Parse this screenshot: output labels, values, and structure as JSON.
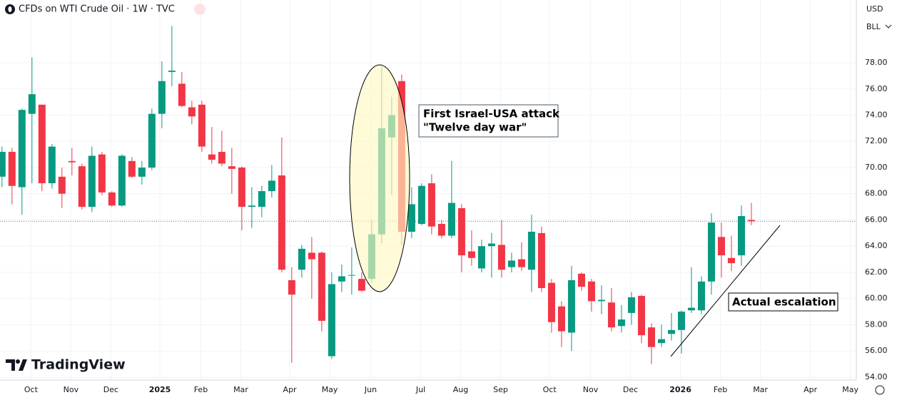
{
  "chart_data": {
    "type": "candlestick",
    "title": "CFDs on WTI Crude Oil · 1W · TVC",
    "currency": "USD",
    "unit": "BLL",
    "logo": "TradingView",
    "annotations": [
      "First Israel-USA attack",
      "\"Twelve day war\"",
      "Actual escalation"
    ],
    "up_color": "#089981",
    "down_color": "#f23645",
    "grid": true,
    "ylim": [
      53.78,
      82.79
    ],
    "yticks": [
      {
        "value": 54,
        "label": "54.00"
      },
      {
        "value": 56,
        "label": "56.00"
      },
      {
        "value": 58,
        "label": "58.00"
      },
      {
        "value": 60,
        "label": "60.00"
      },
      {
        "value": 62,
        "label": "62.00"
      },
      {
        "value": 64,
        "label": "64.00"
      },
      {
        "value": 66,
        "label": "66.00"
      },
      {
        "value": 68,
        "label": "68.00"
      },
      {
        "value": 70,
        "label": "70.00"
      },
      {
        "value": 72,
        "label": "72.00"
      },
      {
        "value": 74,
        "label": "74.00"
      },
      {
        "value": 76,
        "label": "76.00"
      },
      {
        "value": 78,
        "label": "78.00"
      }
    ],
    "xlim": [
      -0.2,
      85.5
    ],
    "xticks": [
      {
        "value": 2.9,
        "label": "Oct"
      },
      {
        "value": 6.9,
        "label": "Nov"
      },
      {
        "value": 10.9,
        "label": "Dec"
      },
      {
        "value": 15.8,
        "label": "2025"
      },
      {
        "value": 19.9,
        "label": "Feb"
      },
      {
        "value": 23.9,
        "label": "Mar"
      },
      {
        "value": 28.8,
        "label": "Apr"
      },
      {
        "value": 32.8,
        "label": "May"
      },
      {
        "value": 36.9,
        "label": "Jun"
      },
      {
        "value": 41.9,
        "label": "Jul"
      },
      {
        "value": 45.9,
        "label": "Aug"
      },
      {
        "value": 49.9,
        "label": "Sep"
      },
      {
        "value": 54.8,
        "label": "Oct"
      },
      {
        "value": 58.9,
        "label": "Nov"
      },
      {
        "value": 62.9,
        "label": "Dec"
      },
      {
        "value": 67.9,
        "label": "2026"
      },
      {
        "value": 71.9,
        "label": "Feb"
      },
      {
        "value": 75.9,
        "label": "Mar"
      },
      {
        "value": 80.9,
        "label": "Apr"
      },
      {
        "value": 84.9,
        "label": "May"
      }
    ],
    "open": [
      69.3,
      71.2,
      68.5,
      74.1,
      74.8,
      68.8,
      69.3,
      70.5,
      70.1,
      67.0,
      71.0,
      68.1,
      67.1,
      70.5,
      69.3,
      70.0,
      74.1,
      77.3,
      76.4,
      74.6,
      74.8,
      71.0,
      71.2,
      70.1,
      70.0,
      67.0,
      67.0,
      68.2,
      69.4,
      61.4,
      62.2,
      63.5,
      63.5,
      55.6,
      61.3,
      61.8,
      61.5,
      61.5,
      64.9,
      72.3,
      76.6,
      65.1,
      65.7,
      68.8,
      65.7,
      64.8,
      66.9,
      63.6,
      62.3,
      64.0,
      64.1,
      62.4,
      63.0,
      62.2,
      65.0,
      61.2,
      59.4,
      57.4,
      61.9,
      61.3,
      59.8,
      59.7,
      57.9,
      58.9,
      60.2,
      57.8,
      56.6,
      57.3,
      57.6,
      59.1,
      59.1,
      61.3,
      64.7,
      63.1,
      63.3,
      66.0
    ],
    "high": [
      71.6,
      71.5,
      74.5,
      78.4,
      74.8,
      71.8,
      70.0,
      71.5,
      70.3,
      71.6,
      71.2,
      68.2,
      71.0,
      70.8,
      70.5,
      74.5,
      78.1,
      80.8,
      77.3,
      75.1,
      75.1,
      73.1,
      72.8,
      71.5,
      70.1,
      68.5,
      68.6,
      70.2,
      72.3,
      62.4,
      64.1,
      64.7,
      63.6,
      62.0,
      62.6,
      63.9,
      62.0,
      66.0,
      77.7,
      75.4,
      77.1,
      68.5,
      68.8,
      69.5,
      66.0,
      70.5,
      67.2,
      65.2,
      64.5,
      65.0,
      66.0,
      63.5,
      64.3,
      66.4,
      65.5,
      61.5,
      59.8,
      62.5,
      62.0,
      61.5,
      61.0,
      60.8,
      59.5,
      60.5,
      60.3,
      58.1,
      58.0,
      58.9,
      59.1,
      62.4,
      61.7,
      66.5,
      65.8,
      64.8,
      67.1,
      67.3
    ],
    "low": [
      68.5,
      67.2,
      66.4,
      68.8,
      68.2,
      68.4,
      66.9,
      69.4,
      66.8,
      66.6,
      67.9,
      67.0,
      67.0,
      69.2,
      68.7,
      69.8,
      73.0,
      76.2,
      74.6,
      73.3,
      71.2,
      70.3,
      70.1,
      68.0,
      65.2,
      65.4,
      66.2,
      67.7,
      62.0,
      55.1,
      61.6,
      60.0,
      57.5,
      55.4,
      60.5,
      60.3,
      60.5,
      61.2,
      64.2,
      67.9,
      64.1,
      64.6,
      65.6,
      64.9,
      64.6,
      64.6,
      62.0,
      62.5,
      62.0,
      61.6,
      61.6,
      62.0,
      62.1,
      60.5,
      60.5,
      57.4,
      56.3,
      56.0,
      60.6,
      59.0,
      58.8,
      57.5,
      57.4,
      58.0,
      56.6,
      55.0,
      56.3,
      56.8,
      55.8,
      58.9,
      58.8,
      60.3,
      61.6,
      62.1,
      62.5,
      65.6
    ],
    "close": [
      71.2,
      68.6,
      74.4,
      75.6,
      68.8,
      71.6,
      68.0,
      70.4,
      67.0,
      70.9,
      68.1,
      67.1,
      70.9,
      69.3,
      70.0,
      74.1,
      76.6,
      77.4,
      74.7,
      73.9,
      71.6,
      70.6,
      70.3,
      69.9,
      67.0,
      67.1,
      68.2,
      69.0,
      62.2,
      60.3,
      63.8,
      63.0,
      58.3,
      61.1,
      61.7,
      61.8,
      60.6,
      64.9,
      73.0,
      74.0,
      65.1,
      67.2,
      68.6,
      65.5,
      64.8,
      67.3,
      63.3,
      63.1,
      64.0,
      64.2,
      62.2,
      62.9,
      62.4,
      65.1,
      60.8,
      58.2,
      57.5,
      61.4,
      60.9,
      59.8,
      59.9,
      57.8,
      58.4,
      60.1,
      57.2,
      56.3,
      56.9,
      57.6,
      59.0,
      59.3,
      61.3,
      65.8,
      63.3,
      62.7,
      66.3,
      65.9
    ]
  }
}
